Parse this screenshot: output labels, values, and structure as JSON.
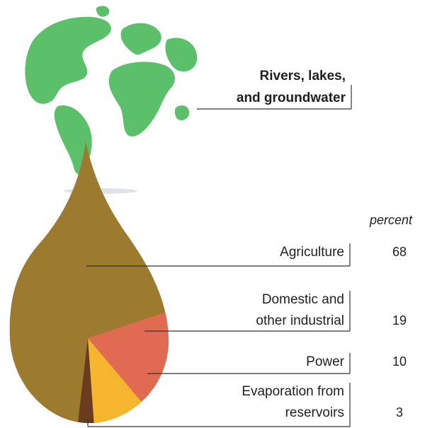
{
  "chart_data": {
    "type": "pie",
    "title": "Rivers, lakes, and groundwater",
    "title_lines": [
      "Rivers, lakes,",
      "and groundwater"
    ],
    "unit_label": "percent",
    "slices": [
      {
        "label": "Agriculture",
        "label_lines": [
          "Agriculture"
        ],
        "value": 68,
        "color": "#9c7a2e"
      },
      {
        "label": "Domestic and other industrial",
        "label_lines": [
          "Domestic and",
          "other industrial"
        ],
        "value": 19,
        "color": "#e06a52"
      },
      {
        "label": "Power",
        "label_lines": [
          "Power"
        ],
        "value": 10,
        "color": "#f5b52d"
      },
      {
        "label": "Evaporation from reservoirs",
        "label_lines": [
          "Evaporation from",
          "reservoirs"
        ],
        "value": 3,
        "color": "#6a3c1e"
      }
    ]
  },
  "colors": {
    "globe_land": "#5cc06a",
    "drop": "#9c7a2e",
    "leader_line": "#333333"
  },
  "icons": {
    "globe": "globe-icon"
  }
}
